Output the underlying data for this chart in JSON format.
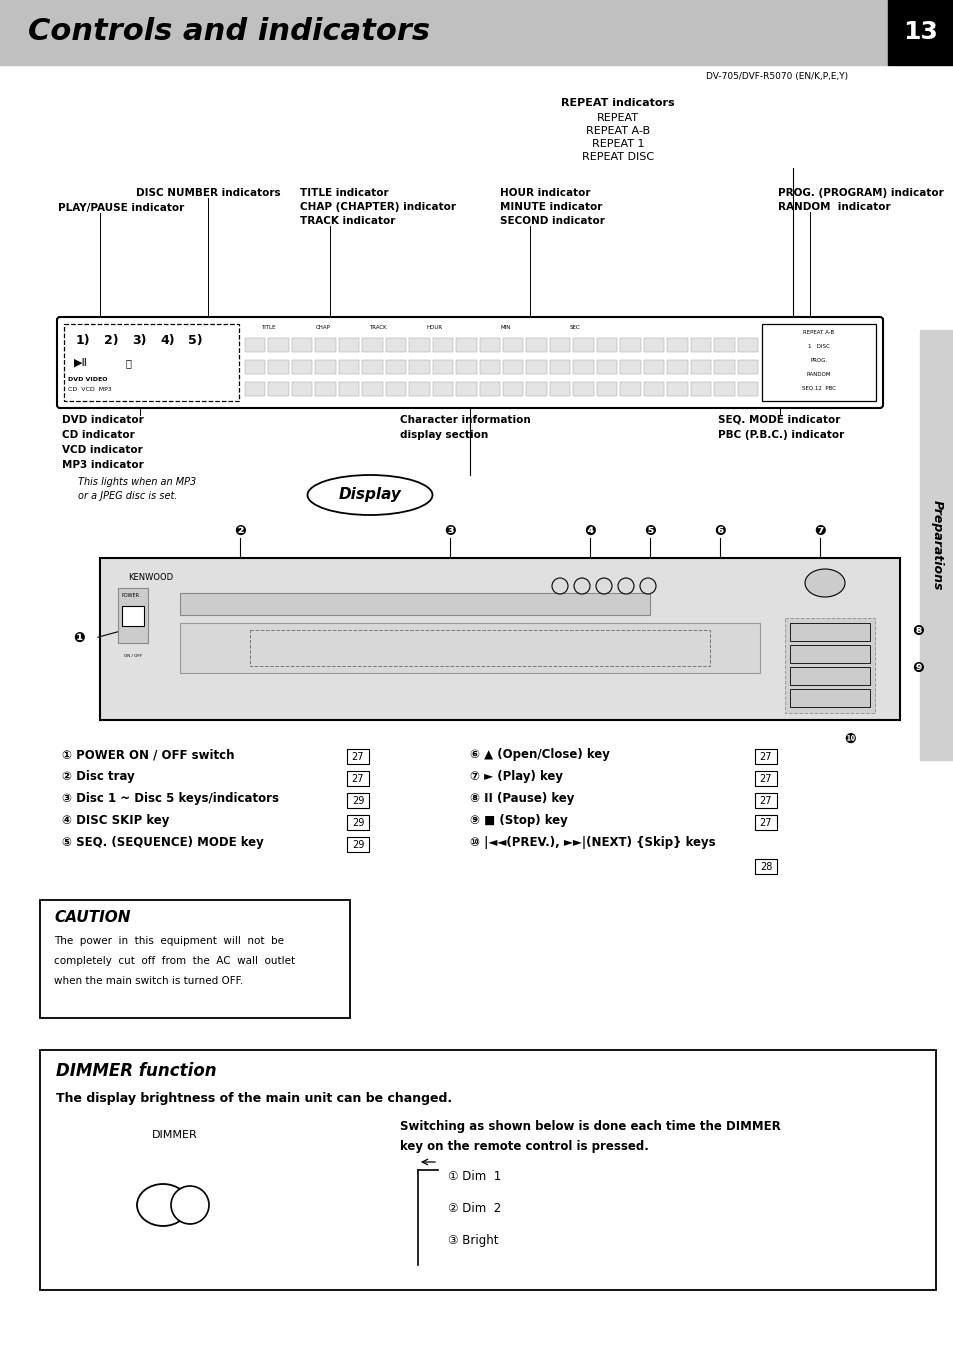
{
  "page_bg": "#ffffff",
  "header_bg": "#c0c0c0",
  "header_title": "Controls and indicators",
  "header_page_num": "13",
  "header_subtitle": "DV-705/DVF-R5070 (EN/K,P,E,Y)",
  "sidebar_text": "Preparations",
  "repeat_lines": [
    "REPEAT indicators",
    "REPEAT",
    "REPEAT A-B",
    "REPEAT 1",
    "REPEAT DISC"
  ],
  "display_col_labels": [
    "TITLE",
    "CHAP",
    "TRACK",
    "HOUR",
    "MIN",
    "SEC"
  ],
  "display_right_labels": [
    "REPEAT A-B",
    "1   DISC",
    "PROG.",
    "RANDOM",
    "SEQ.12  PBC"
  ],
  "controls_col1": [
    [
      "① POWER ON / OFF switch",
      "– 27"
    ],
    [
      "② Disc tray",
      "– 27"
    ],
    [
      "③ Disc 1 ~ Disc 5 keys/indicators",
      "– 29"
    ],
    [
      "④ DISC SKIP key",
      "– 29"
    ],
    [
      "⑤ SEQ. (SEQUENCE) MODE key",
      "– 29"
    ]
  ],
  "controls_col2": [
    [
      "⑥ ▲ (Open/Close) key",
      "– 27"
    ],
    [
      "⑦ ► (Play) key",
      "– 27"
    ],
    [
      "⑧ II (Pause) key",
      "– 27"
    ],
    [
      "⑨ ■ (Stop) key",
      "– 27"
    ],
    [
      "⑩ |◄◄(PREV.), ►►|(NEXT) {Skip} keys",
      "– 28"
    ]
  ],
  "caution_title": "CAUTION",
  "caution_lines": [
    "The  power  in  this  equipment  will  not  be",
    "completely  cut  off  from  the  AC  wall  outlet",
    "when the main switch is turned OFF."
  ],
  "dimmer_title": "DIMMER function",
  "dimmer_subtitle": "The display brightness of the main unit can be changed.",
  "dimmer_switch_line1": "Switching as shown below is done each time the DIMMER",
  "dimmer_switch_line2": "key on the remote control is pressed.",
  "dim_items": [
    "① Dim  1",
    "② Dim  2",
    "③ Bright"
  ]
}
